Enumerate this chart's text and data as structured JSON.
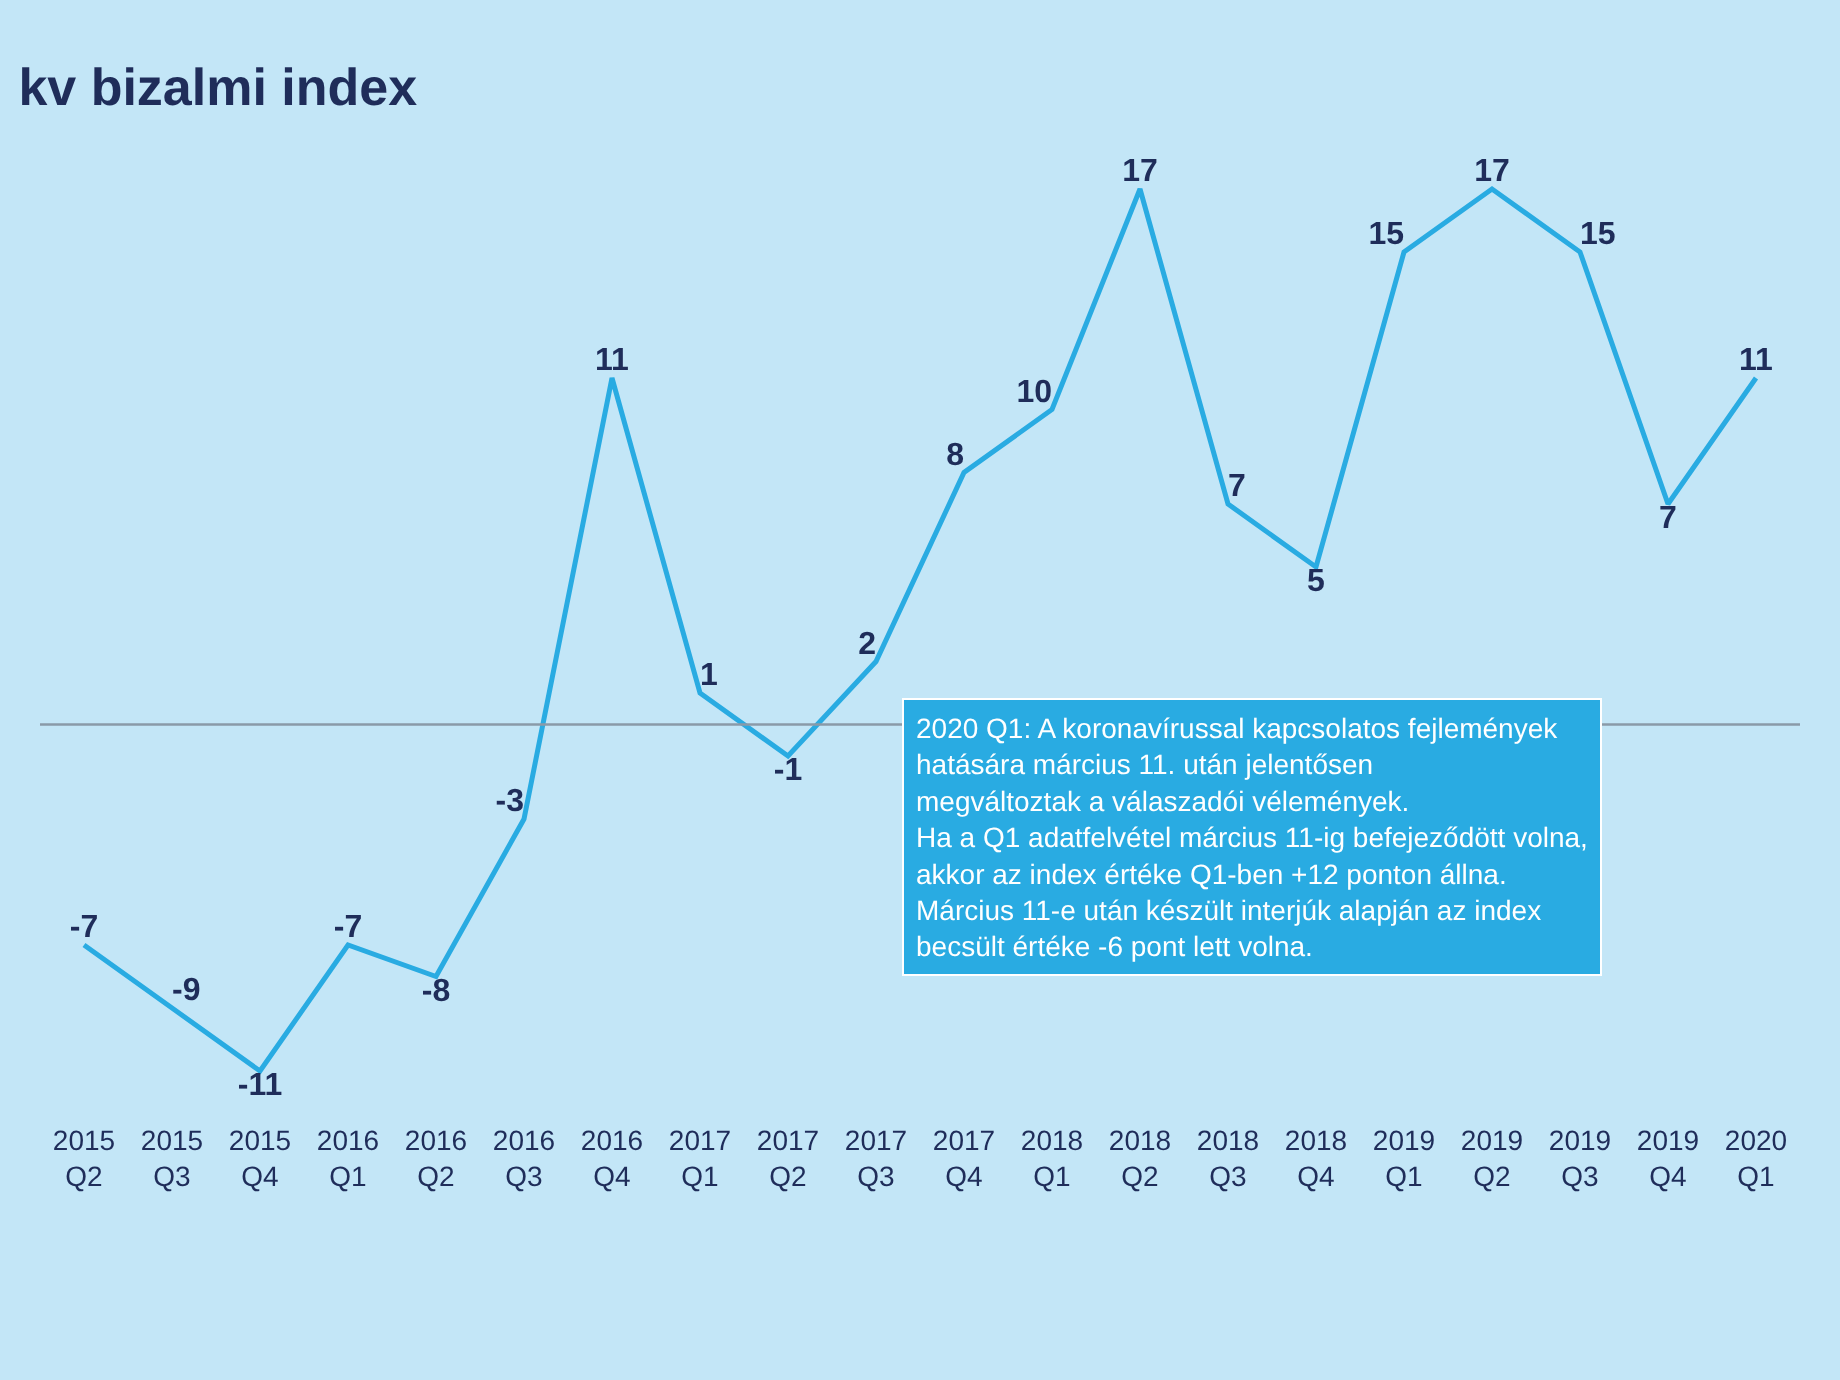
{
  "chart_data": {
    "type": "line",
    "title": "kv bizalmi index",
    "categories": [
      "2015 Q2",
      "2015 Q3",
      "2015 Q4",
      "2016 Q1",
      "2016 Q2",
      "2016 Q3",
      "2016 Q4",
      "2017 Q1",
      "2017 Q2",
      "2017 Q3",
      "2017 Q4",
      "2018 Q1",
      "2018 Q2",
      "2018 Q3",
      "2018 Q4",
      "2019 Q1",
      "2019 Q2",
      "2019 Q3",
      "2019 Q4",
      "2020 Q1"
    ],
    "series": [
      {
        "color": "#29abe2",
        "values": [
          -7,
          -9,
          -11,
          -7,
          -8,
          -3,
          11,
          1,
          -1,
          2,
          8,
          10,
          17,
          7,
          5,
          15,
          17,
          15,
          7,
          11
        ]
      }
    ],
    "data_labels": true,
    "tick_labels": "x",
    "ref_lines": [
      {
        "axis": "y",
        "value": 0,
        "label": null,
        "color": "#8a9aa8"
      }
    ],
    "marker": "none",
    "annotations": [
      "2020 Q1: A koronavírussal kapcsolatos fejlemények\nhatására március 11. után jelentősen\nmegváltoztak a válaszadói vélemények.\nHa a Q1 adatfelvétel március 11-ig befejeződött volna,\nakkor az index értéke Q1-ben +12 ponton állna.\nMárcius 11-e után készült interjúk alapján az index\nbecsült értéke -6 pont lett volna."
    ]
  }
}
